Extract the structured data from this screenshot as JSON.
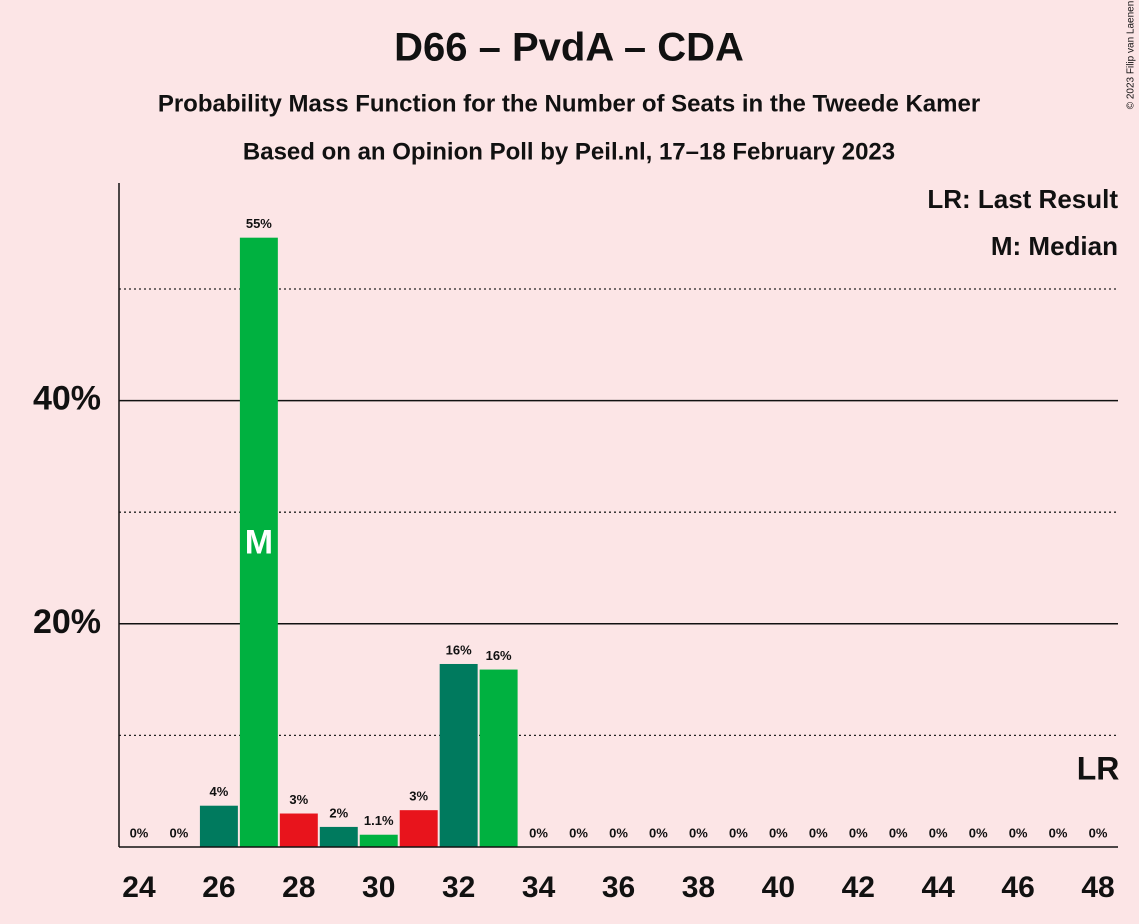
{
  "chart_data": {
    "type": "bar",
    "title": "D66 – PvdA – CDA",
    "subtitle": "Probability Mass Function for the Number of Seats in the Tweede Kamer",
    "subtitle2": "Based on an Opinion Poll by Peil.nl, 17–18 February 2023",
    "copyright": "© 2023 Filip van Laenen",
    "legend": [
      "LR: Last Result",
      "M: Median"
    ],
    "x": [
      24,
      25,
      26,
      27,
      28,
      29,
      30,
      31,
      32,
      33,
      34,
      35,
      36,
      37,
      38,
      39,
      40,
      41,
      42,
      43,
      44,
      45,
      46,
      47,
      48
    ],
    "values": [
      0,
      0,
      3.7,
      54.6,
      3.0,
      1.8,
      1.1,
      3.3,
      16.4,
      15.9,
      0,
      0,
      0,
      0,
      0,
      0,
      0,
      0,
      0,
      0,
      0,
      0,
      0,
      0,
      0
    ],
    "value_labels": [
      "0%",
      "0%",
      "4%",
      "55%",
      "3%",
      "2%",
      "1.1%",
      "3%",
      "16%",
      "16%",
      "0%",
      "0%",
      "0%",
      "0%",
      "0%",
      "0%",
      "0%",
      "0%",
      "0%",
      "0%",
      "0%",
      "0%",
      "0%",
      "0%",
      "0%"
    ],
    "colors": [
      "#00b140",
      "#00b140",
      "#007a5e",
      "#00b140",
      "#e8141c",
      "#007a5e",
      "#00b140",
      "#e8141c",
      "#007a5e",
      "#00b140",
      "#00b140",
      "#00b140",
      "#00b140",
      "#00b140",
      "#00b140",
      "#00b140",
      "#00b140",
      "#00b140",
      "#00b140",
      "#00b140",
      "#00b140",
      "#00b140",
      "#00b140",
      "#00b140",
      "#00b140"
    ],
    "xlim": [
      23.5,
      48.5
    ],
    "xticks": [
      24,
      26,
      28,
      30,
      32,
      34,
      36,
      38,
      40,
      42,
      44,
      46,
      48
    ],
    "ylim": [
      0,
      59.5
    ],
    "yticks": [
      {
        "value": 20,
        "label": "20%"
      },
      {
        "value": 40,
        "label": "40%"
      }
    ],
    "yminor": [
      10,
      30,
      50
    ],
    "grid": true,
    "median": {
      "x": 27,
      "label": "M"
    },
    "last_result": {
      "x": 48,
      "label": "LR"
    }
  }
}
